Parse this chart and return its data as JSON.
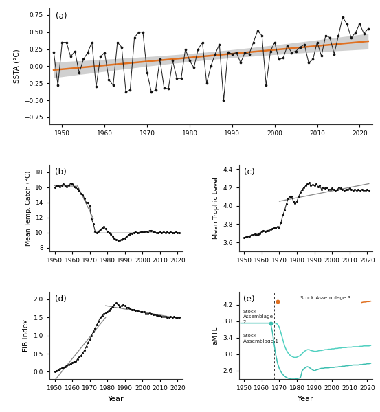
{
  "title_a": "(a)",
  "title_b": "(b)",
  "title_c": "(c)",
  "title_d": "(d)",
  "title_e": "(e)",
  "ylabel_a": "SSTA (°C)",
  "ylabel_b": "Mean Temp. Catch (°C)",
  "ylabel_c": "Mean Trophic Level",
  "ylabel_d": "FiB Index",
  "ylabel_e": "aMTL",
  "xlabel": "Year",
  "ssta_years": [
    1948,
    1949,
    1950,
    1951,
    1952,
    1953,
    1954,
    1955,
    1956,
    1957,
    1958,
    1959,
    1960,
    1961,
    1962,
    1963,
    1964,
    1965,
    1966,
    1967,
    1968,
    1969,
    1970,
    1971,
    1972,
    1973,
    1974,
    1975,
    1976,
    1977,
    1978,
    1979,
    1980,
    1981,
    1982,
    1983,
    1984,
    1985,
    1986,
    1987,
    1988,
    1989,
    1990,
    1991,
    1992,
    1993,
    1994,
    1995,
    1996,
    1997,
    1998,
    1999,
    2000,
    2001,
    2002,
    2003,
    2004,
    2005,
    2006,
    2007,
    2008,
    2009,
    2010,
    2011,
    2012,
    2013,
    2014,
    2015,
    2016,
    2017,
    2018,
    2019,
    2020,
    2021,
    2022
  ],
  "ssta_vals": [
    0.21,
    -0.28,
    0.35,
    0.35,
    0.14,
    0.22,
    -0.1,
    0.1,
    0.2,
    0.35,
    -0.3,
    0.14,
    0.2,
    -0.2,
    -0.28,
    0.35,
    0.28,
    -0.38,
    -0.35,
    0.42,
    0.5,
    0.5,
    -0.1,
    -0.38,
    -0.35,
    0.1,
    -0.32,
    -0.33,
    0.08,
    -0.18,
    -0.18,
    0.25,
    0.08,
    -0.02,
    0.25,
    0.35,
    -0.25,
    0.0,
    0.18,
    0.32,
    -0.5,
    0.21,
    0.18,
    0.2,
    0.05,
    0.2,
    0.18,
    0.35,
    0.52,
    0.45,
    -0.28,
    0.22,
    0.35,
    0.1,
    0.12,
    0.3,
    0.2,
    0.22,
    0.28,
    0.32,
    0.05,
    0.1,
    0.35,
    0.15,
    0.45,
    0.42,
    0.18,
    0.45,
    0.72,
    0.62,
    0.42,
    0.49,
    0.62,
    0.48,
    0.55
  ],
  "trend_color": "#E07020",
  "ci_color": "#C8C8C8",
  "line_color": "#222222",
  "marker_color": "#111111",
  "mtc_years": [
    1950,
    1951,
    1952,
    1953,
    1954,
    1955,
    1956,
    1957,
    1958,
    1959,
    1960,
    1961,
    1962,
    1963,
    1964,
    1965,
    1966,
    1967,
    1968,
    1969,
    1970,
    1971,
    1972,
    1973,
    1974,
    1975,
    1976,
    1977,
    1978,
    1979,
    1980,
    1981,
    1982,
    1983,
    1984,
    1985,
    1986,
    1987,
    1988,
    1989,
    1990,
    1991,
    1992,
    1993,
    1994,
    1995,
    1996,
    1997,
    1998,
    1999,
    2000,
    2001,
    2002,
    2003,
    2004,
    2005,
    2006,
    2007,
    2008,
    2009,
    2010,
    2011,
    2012,
    2013,
    2014,
    2015,
    2016,
    2017,
    2018,
    2019,
    2020,
    2021
  ],
  "mtc_vals": [
    16.0,
    16.2,
    16.2,
    16.1,
    16.3,
    16.4,
    16.2,
    16.1,
    16.3,
    16.5,
    16.4,
    16.1,
    16.0,
    15.8,
    15.5,
    15.2,
    15.0,
    14.5,
    14.0,
    14.0,
    13.5,
    11.8,
    11.2,
    10.2,
    10.0,
    10.2,
    10.4,
    10.6,
    10.8,
    10.5,
    10.2,
    10.0,
    9.8,
    9.5,
    9.3,
    9.1,
    9.0,
    9.0,
    9.1,
    9.2,
    9.3,
    9.5,
    9.7,
    9.8,
    9.9,
    10.0,
    10.1,
    10.0,
    10.0,
    10.1,
    10.1,
    10.2,
    10.2,
    10.1,
    10.3,
    10.3,
    10.2,
    10.1,
    10.0,
    10.0,
    10.1,
    10.0,
    10.1,
    10.0,
    10.1,
    10.0,
    10.1,
    10.0,
    10.0,
    10.1,
    10.0,
    10.0
  ],
  "mtc_break1": 13,
  "mtc_break2": 22,
  "mtl_years": [
    1950,
    1951,
    1952,
    1953,
    1954,
    1955,
    1956,
    1957,
    1958,
    1959,
    1960,
    1961,
    1962,
    1963,
    1964,
    1965,
    1966,
    1967,
    1968,
    1969,
    1970,
    1971,
    1972,
    1973,
    1974,
    1975,
    1976,
    1977,
    1978,
    1979,
    1980,
    1981,
    1982,
    1983,
    1984,
    1985,
    1986,
    1987,
    1988,
    1989,
    1990,
    1991,
    1992,
    1993,
    1994,
    1995,
    1996,
    1997,
    1998,
    1999,
    2000,
    2001,
    2002,
    2003,
    2004,
    2005,
    2006,
    2007,
    2008,
    2009,
    2010,
    2011,
    2012,
    2013,
    2014,
    2015,
    2016,
    2017,
    2018,
    2019,
    2020,
    2021
  ],
  "mtl_vals": [
    3.65,
    3.66,
    3.67,
    3.67,
    3.68,
    3.68,
    3.69,
    3.68,
    3.69,
    3.7,
    3.72,
    3.73,
    3.72,
    3.73,
    3.73,
    3.74,
    3.75,
    3.76,
    3.76,
    3.77,
    3.76,
    3.82,
    3.9,
    3.95,
    4.02,
    4.08,
    4.1,
    4.1,
    4.05,
    4.03,
    4.05,
    4.1,
    4.15,
    4.18,
    4.2,
    4.22,
    4.24,
    4.25,
    4.22,
    4.23,
    4.22,
    4.24,
    4.21,
    4.22,
    4.18,
    4.2,
    4.19,
    4.2,
    4.18,
    4.18,
    4.19,
    4.18,
    4.17,
    4.18,
    4.2,
    4.19,
    4.18,
    4.17,
    4.18,
    4.18,
    4.19,
    4.18,
    4.17,
    4.18,
    4.17,
    4.18,
    4.17,
    4.18,
    4.17,
    4.17,
    4.18,
    4.17
  ],
  "mtl_break": 20,
  "fib_years": [
    1950,
    1951,
    1952,
    1953,
    1954,
    1955,
    1956,
    1957,
    1958,
    1959,
    1960,
    1961,
    1962,
    1963,
    1964,
    1965,
    1966,
    1967,
    1968,
    1969,
    1970,
    1971,
    1972,
    1973,
    1974,
    1975,
    1976,
    1977,
    1978,
    1979,
    1980,
    1981,
    1982,
    1983,
    1984,
    1985,
    1986,
    1987,
    1988,
    1989,
    1990,
    1991,
    1992,
    1993,
    1994,
    1995,
    1996,
    1997,
    1998,
    1999,
    2000,
    2001,
    2002,
    2003,
    2004,
    2005,
    2006,
    2007,
    2008,
    2009,
    2010,
    2011,
    2012,
    2013,
    2014,
    2015,
    2016,
    2017,
    2018,
    2019,
    2020,
    2021
  ],
  "fib_vals": [
    0.0,
    0.02,
    0.05,
    0.08,
    0.1,
    0.12,
    0.15,
    0.18,
    0.2,
    0.22,
    0.25,
    0.28,
    0.3,
    0.35,
    0.4,
    0.45,
    0.52,
    0.6,
    0.7,
    0.8,
    0.9,
    1.0,
    1.1,
    1.2,
    1.3,
    1.4,
    1.5,
    1.55,
    1.6,
    1.62,
    1.65,
    1.7,
    1.75,
    1.8,
    1.85,
    1.9,
    1.85,
    1.8,
    1.82,
    1.85,
    1.82,
    1.78,
    1.78,
    1.75,
    1.72,
    1.72,
    1.7,
    1.68,
    1.68,
    1.65,
    1.65,
    1.65,
    1.6,
    1.6,
    1.62,
    1.6,
    1.58,
    1.58,
    1.56,
    1.55,
    1.55,
    1.52,
    1.52,
    1.52,
    1.5,
    1.5,
    1.52,
    1.5,
    1.52,
    1.5,
    1.5,
    1.5
  ],
  "fib_break": 29,
  "amtl_years": [
    1948,
    1949,
    1950,
    1951,
    1952,
    1953,
    1954,
    1955,
    1956,
    1957,
    1958,
    1959,
    1960,
    1961,
    1962,
    1963,
    1964,
    1965,
    1966,
    1967,
    1968,
    1969,
    1970,
    1971,
    1972,
    1973,
    1974,
    1975,
    1976,
    1977,
    1978,
    1979,
    1980,
    1981,
    1982,
    1983,
    1984,
    1985,
    1986,
    1987,
    1988,
    1989,
    1990,
    1991,
    1992,
    1993,
    1994,
    1995,
    1996,
    1997,
    1998,
    1999,
    2000,
    2001,
    2002,
    2003,
    2004,
    2005,
    2006,
    2007,
    2008,
    2009,
    2010,
    2011,
    2012,
    2013,
    2014,
    2015,
    2016,
    2017,
    2018,
    2019,
    2020,
    2021,
    2022
  ],
  "amtl_sa1": [
    3.75,
    3.75,
    3.75,
    3.75,
    3.75,
    3.75,
    3.75,
    3.75,
    3.75,
    3.75,
    3.75,
    3.75,
    3.75,
    3.75,
    3.75,
    3.75,
    3.75,
    3.75,
    3.55,
    3.25,
    2.98,
    2.78,
    2.65,
    2.57,
    2.51,
    2.47,
    2.44,
    2.42,
    2.41,
    2.4,
    2.4,
    2.4,
    2.41,
    2.42,
    2.43,
    2.6,
    2.65,
    2.68,
    2.7,
    2.68,
    2.65,
    2.62,
    2.6,
    2.62,
    2.63,
    2.65,
    2.66,
    2.66,
    2.67,
    2.67,
    2.67,
    2.68,
    2.68,
    2.68,
    2.69,
    2.69,
    2.7,
    2.7,
    2.71,
    2.71,
    2.72,
    2.72,
    2.73,
    2.73,
    2.74,
    2.74,
    2.74,
    2.74,
    2.75,
    2.75,
    2.76,
    2.76,
    2.77,
    2.77,
    2.78
  ],
  "amtl_sa2": [
    null,
    null,
    null,
    null,
    null,
    null,
    null,
    null,
    null,
    null,
    null,
    null,
    null,
    null,
    null,
    null,
    null,
    null,
    3.75,
    3.75,
    3.75,
    3.72,
    3.65,
    3.5,
    3.35,
    3.2,
    3.1,
    3.03,
    2.98,
    2.95,
    2.93,
    2.92,
    2.93,
    2.95,
    2.97,
    3.02,
    3.06,
    3.09,
    3.11,
    3.11,
    3.09,
    3.08,
    3.07,
    3.07,
    3.08,
    3.09,
    3.09,
    3.1,
    3.11,
    3.11,
    3.12,
    3.12,
    3.13,
    3.13,
    3.14,
    3.14,
    3.15,
    3.15,
    3.16,
    3.16,
    3.16,
    3.17,
    3.17,
    3.17,
    3.18,
    3.18,
    3.18,
    3.18,
    3.19,
    3.19,
    3.2,
    3.2,
    3.2,
    3.2,
    3.21
  ],
  "amtl_sa3": [
    null,
    null,
    null,
    null,
    null,
    null,
    null,
    null,
    null,
    null,
    null,
    null,
    null,
    null,
    null,
    null,
    null,
    null,
    null,
    null,
    null,
    null,
    null,
    null,
    null,
    null,
    null,
    null,
    null,
    null,
    null,
    null,
    null,
    null,
    null,
    null,
    null,
    null,
    null,
    null,
    null,
    null,
    null,
    null,
    null,
    null,
    null,
    null,
    null,
    null,
    null,
    null,
    null,
    null,
    null,
    null,
    null,
    null,
    null,
    null,
    null,
    null,
    null,
    null,
    null,
    null,
    null,
    null,
    null,
    4.25,
    4.26,
    4.26,
    4.27,
    4.27,
    4.28
  ],
  "color_sa1": "#3DBFB0",
  "color_sa2": "#50D0C0",
  "color_sa3": "#E07020",
  "bg_color": "#FFFFFF",
  "gray_line": "#888888",
  "ssta_ylim": [
    -0.85,
    0.85
  ],
  "ssta_yticks": [
    -0.75,
    -0.5,
    -0.25,
    0.0,
    0.25,
    0.5,
    0.75
  ],
  "mtc_ylim": [
    7.5,
    19.0
  ],
  "mtc_yticks": [
    8,
    10,
    12,
    14,
    16,
    18
  ],
  "mtl_ylim": [
    3.5,
    4.45
  ],
  "mtl_yticks": [
    3.6,
    3.8,
    4.0,
    4.2,
    4.4
  ],
  "fib_ylim": [
    -0.2,
    2.2
  ],
  "fib_yticks": [
    0.0,
    0.5,
    1.0,
    1.5,
    2.0
  ],
  "amtl_ylim": [
    2.4,
    4.5
  ],
  "amtl_yticks": [
    2.6,
    3.0,
    3.4,
    3.8,
    4.2
  ],
  "xlim": [
    1947,
    2023
  ],
  "xticks": [
    1950,
    1960,
    1970,
    1980,
    1990,
    2000,
    2010,
    2020
  ],
  "amtl_vline_x": 1967
}
